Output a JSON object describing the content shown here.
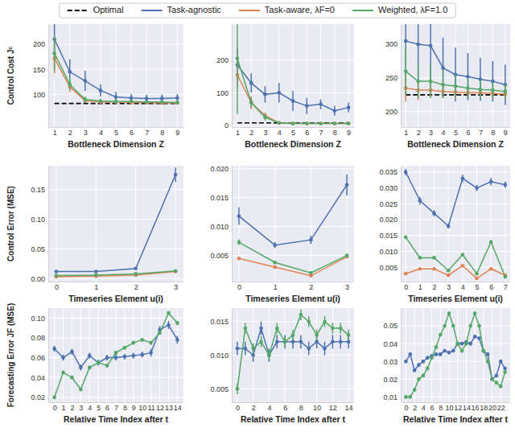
{
  "chart_data": [
    {
      "type": "line",
      "legend": "top",
      "x_label": "Bottleneck Dimension Z",
      "y_label": "Control Cost Jᶜ",
      "x": [
        1,
        2,
        3,
        4,
        5,
        6,
        7,
        8,
        9
      ],
      "xlim": [
        0.6,
        9.4
      ],
      "xticks": [
        1,
        2,
        3,
        4,
        5,
        6,
        7,
        8,
        9
      ],
      "ylim": [
        35,
        240
      ],
      "yticks": [
        100,
        150,
        200
      ],
      "grid": true,
      "series": [
        {
          "name": "Optimal",
          "color": "#000000",
          "line_style": "dashed",
          "values": [
            82,
            82,
            82,
            82,
            82,
            82,
            82,
            82,
            82
          ]
        },
        {
          "name": "Task-agnostic",
          "color": "#4c72b0",
          "marker": "circle",
          "line_style": "solid",
          "values": [
            210,
            145,
            127,
            108,
            95,
            93,
            92,
            92,
            93
          ],
          "errors": [
            40,
            25,
            20,
            12,
            10,
            8,
            8,
            8,
            8
          ]
        },
        {
          "name": "Task-aware, λF=0",
          "color": "#dd8452",
          "marker": "circle",
          "line_style": "solid",
          "values": [
            172,
            115,
            88,
            85,
            85,
            84,
            84,
            83,
            83
          ],
          "errors": [
            30,
            10,
            5,
            4,
            3,
            3,
            3,
            3,
            3
          ]
        },
        {
          "name": "Weighted, λF=1.0",
          "color": "#55a868",
          "marker": "circle",
          "line_style": "solid",
          "values": [
            182,
            120,
            90,
            87,
            86,
            86,
            85,
            85,
            84
          ],
          "errors": [
            35,
            12,
            6,
            4,
            4,
            3,
            3,
            3,
            3
          ]
        }
      ]
    },
    {
      "type": "line",
      "x_label": "Bottleneck Dimension Z",
      "x": [
        1,
        2,
        3,
        4,
        5,
        6,
        7,
        8,
        9
      ],
      "xlim": [
        0.6,
        9.4
      ],
      "xticks": [
        1,
        2,
        3,
        4,
        5,
        6,
        7,
        8,
        9
      ],
      "ylim": [
        -5,
        310
      ],
      "yticks": [
        0,
        100,
        200
      ],
      "grid": true,
      "series": [
        {
          "color": "#000000",
          "line_style": "dashed",
          "values": [
            8,
            8,
            8,
            8,
            8,
            8,
            8,
            8,
            8
          ]
        },
        {
          "color": "#4c72b0",
          "marker": "circle",
          "line_style": "solid",
          "values": [
            185,
            130,
            95,
            100,
            75,
            60,
            65,
            45,
            55
          ],
          "errors": [
            50,
            30,
            25,
            30,
            30,
            25,
            15,
            15,
            15
          ]
        },
        {
          "color": "#dd8452",
          "marker": "circle",
          "line_style": "solid",
          "values": [
            155,
            70,
            30,
            8,
            6,
            6,
            6,
            6,
            6
          ],
          "errors": [
            40,
            20,
            10,
            3,
            2,
            2,
            2,
            2,
            2
          ]
        },
        {
          "color": "#55a868",
          "marker": "circle",
          "line_style": "solid",
          "values": [
            205,
            70,
            25,
            8,
            6,
            6,
            6,
            6,
            6
          ],
          "errors": [
            170,
            15,
            10,
            3,
            2,
            2,
            2,
            2,
            2
          ]
        }
      ]
    },
    {
      "type": "line",
      "x_label": "Bottleneck Dimension Z",
      "x": [
        1,
        2,
        3,
        4,
        5,
        6,
        7,
        8,
        9
      ],
      "xlim": [
        0.6,
        9.4
      ],
      "xticks": [
        1,
        2,
        3,
        4,
        5,
        6,
        7,
        8,
        9
      ],
      "ylim": [
        177,
        330
      ],
      "yticks": [
        200,
        250,
        300
      ],
      "grid": true,
      "series": [
        {
          "color": "#000000",
          "line_style": "dashed",
          "values": [
            225,
            225,
            225,
            225,
            225,
            225,
            225,
            225,
            225
          ]
        },
        {
          "color": "#4c72b0",
          "marker": "circle",
          "line_style": "solid",
          "values": [
            305,
            300,
            298,
            265,
            255,
            252,
            248,
            245,
            240
          ],
          "errors": [
            60,
            60,
            60,
            45,
            40,
            35,
            32,
            30,
            30
          ]
        },
        {
          "color": "#dd8452",
          "marker": "circle",
          "line_style": "solid",
          "values": [
            235,
            232,
            232,
            230,
            229,
            228,
            228,
            227,
            226
          ],
          "errors": [
            20,
            15,
            12,
            10,
            10,
            8,
            8,
            8,
            8
          ]
        },
        {
          "color": "#55a868",
          "marker": "circle",
          "line_style": "solid",
          "values": [
            260,
            245,
            245,
            240,
            238,
            235,
            233,
            232,
            230
          ],
          "errors": [
            35,
            25,
            25,
            20,
            18,
            15,
            15,
            12,
            12
          ]
        }
      ]
    },
    {
      "type": "line",
      "x_label": "Timeseries Element u(i)",
      "y_label": "Control Error (MSE)",
      "x": [
        0,
        1,
        2,
        3
      ],
      "xlim": [
        -0.2,
        3.2
      ],
      "xticks": [
        0,
        1,
        2,
        3
      ],
      "ylim": [
        -0.005,
        0.19
      ],
      "yticks": [
        {
          "value": 0,
          "label": "0.00"
        },
        0.05,
        {
          "value": 0.1,
          "label": "0.10"
        },
        0.15
      ],
      "grid": true,
      "series": [
        {
          "color": "#4c72b0",
          "marker": "circle",
          "line_style": "solid",
          "values": [
            0.012,
            0.012,
            0.017,
            0.175
          ],
          "errors": [
            0.001,
            0.001,
            0.001,
            0.012
          ]
        },
        {
          "color": "#dd8452",
          "marker": "circle",
          "line_style": "solid",
          "values": [
            0.003,
            0.004,
            0.006,
            0.012
          ],
          "errors": [
            0.0005,
            0.0005,
            0.0005,
            0.001
          ]
        },
        {
          "color": "#55a868",
          "marker": "circle",
          "line_style": "solid",
          "values": [
            0.005,
            0.006,
            0.008,
            0.013
          ],
          "errors": [
            0.0005,
            0.0005,
            0.0005,
            0.001
          ]
        }
      ]
    },
    {
      "type": "line",
      "x_label": "Timeseries Element u(i)",
      "x": [
        0,
        1,
        2,
        3
      ],
      "xlim": [
        -0.2,
        3.2
      ],
      "xticks": [
        0,
        1,
        2,
        3
      ],
      "ylim": [
        0.0005,
        0.0205
      ],
      "yticks": [
        0.005,
        {
          "value": 0.01,
          "label": "0.010"
        },
        0.015,
        {
          "value": 0.02,
          "label": "0.020"
        }
      ],
      "grid": true,
      "series": [
        {
          "color": "#4c72b0",
          "marker": "circle",
          "line_style": "solid",
          "values": [
            0.0118,
            0.0068,
            0.0077,
            0.0172
          ],
          "errors": [
            0.0015,
            0.0005,
            0.0007,
            0.0018
          ]
        },
        {
          "color": "#dd8452",
          "marker": "circle",
          "line_style": "solid",
          "values": [
            0.0045,
            0.003,
            0.0015,
            0.0048
          ],
          "errors": [
            0.0003,
            0.0002,
            0.0002,
            0.0003
          ]
        },
        {
          "color": "#55a868",
          "marker": "circle",
          "line_style": "solid",
          "values": [
            0.0073,
            0.0038,
            0.002,
            0.005
          ],
          "errors": [
            0.0005,
            0.0003,
            0.0002,
            0.0003
          ]
        }
      ]
    },
    {
      "type": "line",
      "x_label": "Timeseries Element u(i)",
      "x": [
        0,
        1,
        2,
        3,
        4,
        5,
        6,
        7
      ],
      "xlim": [
        -0.35,
        7.35
      ],
      "xticks": [
        0,
        1,
        2,
        3,
        4,
        5,
        6,
        7
      ],
      "ylim": [
        0.0005,
        0.037
      ],
      "yticks": [
        0.005,
        {
          "value": 0.01,
          "label": "0.010"
        },
        0.015,
        {
          "value": 0.02,
          "label": "0.020"
        },
        0.025,
        {
          "value": 0.03,
          "label": "0.030"
        },
        0.035
      ],
      "grid": true,
      "series": [
        {
          "color": "#4c72b0",
          "marker": "circle",
          "line_style": "solid",
          "values": [
            0.035,
            0.026,
            0.022,
            0.018,
            0.033,
            0.03,
            0.032,
            0.031
          ],
          "errors": [
            0.001,
            0.0012,
            0.001,
            0.0008,
            0.0012,
            0.001,
            0.0012,
            0.001
          ]
        },
        {
          "color": "#dd8452",
          "marker": "circle",
          "line_style": "solid",
          "values": [
            0.003,
            0.0045,
            0.0045,
            0.0025,
            0.0055,
            0.0015,
            0.0045,
            0.0025
          ],
          "errors": [
            0.0002,
            0.0002,
            0.0002,
            0.0002,
            0.0002,
            0.0002,
            0.0002,
            0.0002
          ]
        },
        {
          "color": "#55a868",
          "marker": "circle",
          "line_style": "solid",
          "values": [
            0.0145,
            0.008,
            0.008,
            0.004,
            0.009,
            0.003,
            0.013,
            0.002
          ],
          "errors": [
            0.0005,
            0.0003,
            0.0003,
            0.0002,
            0.0003,
            0.0002,
            0.0004,
            0.0002
          ]
        }
      ]
    },
    {
      "type": "line",
      "x_label": "Relative Time Index after t",
      "y_label": "Forecasting Error JF (MSE)",
      "x": [
        0,
        1,
        2,
        3,
        4,
        5,
        6,
        7,
        8,
        9,
        10,
        11,
        12,
        13,
        14
      ],
      "xlim": [
        -0.7,
        14.7
      ],
      "xticks": [
        0,
        1,
        2,
        3,
        4,
        5,
        6,
        7,
        8,
        9,
        10,
        11,
        12,
        13,
        14
      ],
      "ylim": [
        0.015,
        0.11
      ],
      "yticks": [
        0.02,
        0.04,
        0.06,
        0.08,
        {
          "value": 0.1,
          "label": "0.10"
        }
      ],
      "grid": true,
      "series": [
        {
          "color": "#4c72b0",
          "marker": "circle",
          "line_style": "solid",
          "values": [
            0.069,
            0.06,
            0.066,
            0.05,
            0.062,
            0.055,
            0.06,
            0.06,
            0.061,
            0.062,
            0.063,
            0.065,
            0.088,
            0.093,
            0.078
          ],
          "errors": [
            0.003,
            0.003,
            0.003,
            0.003,
            0.003,
            0.003,
            0.003,
            0.003,
            0.003,
            0.003,
            0.003,
            0.004,
            0.004,
            0.004,
            0.004
          ]
        },
        {
          "color": "#55a868",
          "marker": "circle",
          "line_style": "solid",
          "values": [
            0.02,
            0.045,
            0.04,
            0.028,
            0.05,
            0.055,
            0.052,
            0.065,
            0.07,
            0.075,
            0.078,
            0.075,
            0.085,
            0.105,
            0.095
          ],
          "errors": [
            0.002,
            0.002,
            0.002,
            0.002,
            0.002,
            0.002,
            0.002,
            0.002,
            0.002,
            0.002,
            0.002,
            0.002,
            0.002,
            0.002,
            0.002
          ]
        }
      ]
    },
    {
      "type": "line",
      "x_label": "Relative Time Index after t",
      "x": [
        0,
        1,
        2,
        3,
        4,
        5,
        6,
        7,
        8,
        9,
        10,
        11,
        12,
        13,
        14
      ],
      "xlim": [
        -0.7,
        14.7
      ],
      "xticks": [
        0,
        2,
        4,
        6,
        8,
        10,
        12,
        14
      ],
      "ylim": [
        0.003,
        0.017
      ],
      "yticks": [
        0.005,
        {
          "value": 0.01,
          "label": "0.010"
        },
        0.015
      ],
      "grid": true,
      "series": [
        {
          "color": "#4c72b0",
          "marker": "circle",
          "line_style": "solid",
          "values": [
            0.011,
            0.011,
            0.01,
            0.014,
            0.01,
            0.012,
            0.012,
            0.012,
            0.012,
            0.011,
            0.012,
            0.011,
            0.012,
            0.012,
            0.012
          ],
          "errors": [
            0.001,
            0.001,
            0.001,
            0.001,
            0.001,
            0.001,
            0.001,
            0.001,
            0.001,
            0.001,
            0.001,
            0.001,
            0.001,
            0.001,
            0.001
          ]
        },
        {
          "color": "#55a868",
          "marker": "circle",
          "line_style": "solid",
          "values": [
            0.005,
            0.014,
            0.011,
            0.012,
            0.01,
            0.014,
            0.012,
            0.013,
            0.016,
            0.015,
            0.013,
            0.015,
            0.014,
            0.014,
            0.013
          ],
          "errors": [
            0.0008,
            0.0008,
            0.0008,
            0.0008,
            0.0008,
            0.0008,
            0.0008,
            0.0008,
            0.0008,
            0.0008,
            0.0008,
            0.0008,
            0.0008,
            0.0008,
            0.0008
          ]
        }
      ]
    },
    {
      "type": "line",
      "x_label": "Relative Time Index after t",
      "x": [
        0,
        1,
        2,
        3,
        4,
        5,
        6,
        7,
        8,
        9,
        10,
        11,
        12,
        13,
        14,
        15,
        16,
        17,
        18,
        19,
        20,
        21,
        22,
        23
      ],
      "xlim": [
        -1.2,
        24.2
      ],
      "xticks": [
        0,
        2,
        4,
        6,
        8,
        10,
        12,
        14,
        16,
        18,
        20,
        22
      ],
      "ylim": [
        0.007,
        0.06
      ],
      "yticks": [
        0.01,
        0.02,
        0.03,
        0.04,
        0.05
      ],
      "grid": true,
      "series": [
        {
          "color": "#4c72b0",
          "marker": "circle",
          "line_style": "solid",
          "values": [
            0.03,
            0.034,
            0.025,
            0.028,
            0.03,
            0.032,
            0.033,
            0.034,
            0.034,
            0.036,
            0.035,
            0.036,
            0.04,
            0.04,
            0.041,
            0.04,
            0.044,
            0.043,
            0.036,
            0.034,
            0.02,
            0.022,
            0.03,
            0.026
          ],
          "errors": [
            0.001,
            0.001,
            0.001,
            0.001,
            0.001,
            0.001,
            0.001,
            0.001,
            0.001,
            0.001,
            0.001,
            0.001,
            0.001,
            0.001,
            0.001,
            0.001,
            0.001,
            0.001,
            0.001,
            0.001,
            0.001,
            0.001,
            0.001,
            0.001
          ]
        },
        {
          "color": "#55a868",
          "marker": "circle",
          "line_style": "solid",
          "values": [
            0.01,
            0.01,
            0.014,
            0.02,
            0.022,
            0.026,
            0.032,
            0.038,
            0.045,
            0.05,
            0.057,
            0.05,
            0.04,
            0.036,
            0.04,
            0.05,
            0.057,
            0.05,
            0.036,
            0.03,
            0.02,
            0.018,
            0.016,
            0.024
          ],
          "errors": [
            0.001,
            0.001,
            0.001,
            0.001,
            0.001,
            0.001,
            0.001,
            0.001,
            0.001,
            0.001,
            0.001,
            0.001,
            0.001,
            0.001,
            0.001,
            0.001,
            0.001,
            0.001,
            0.001,
            0.001,
            0.001,
            0.001,
            0.001,
            0.001
          ]
        }
      ]
    }
  ]
}
